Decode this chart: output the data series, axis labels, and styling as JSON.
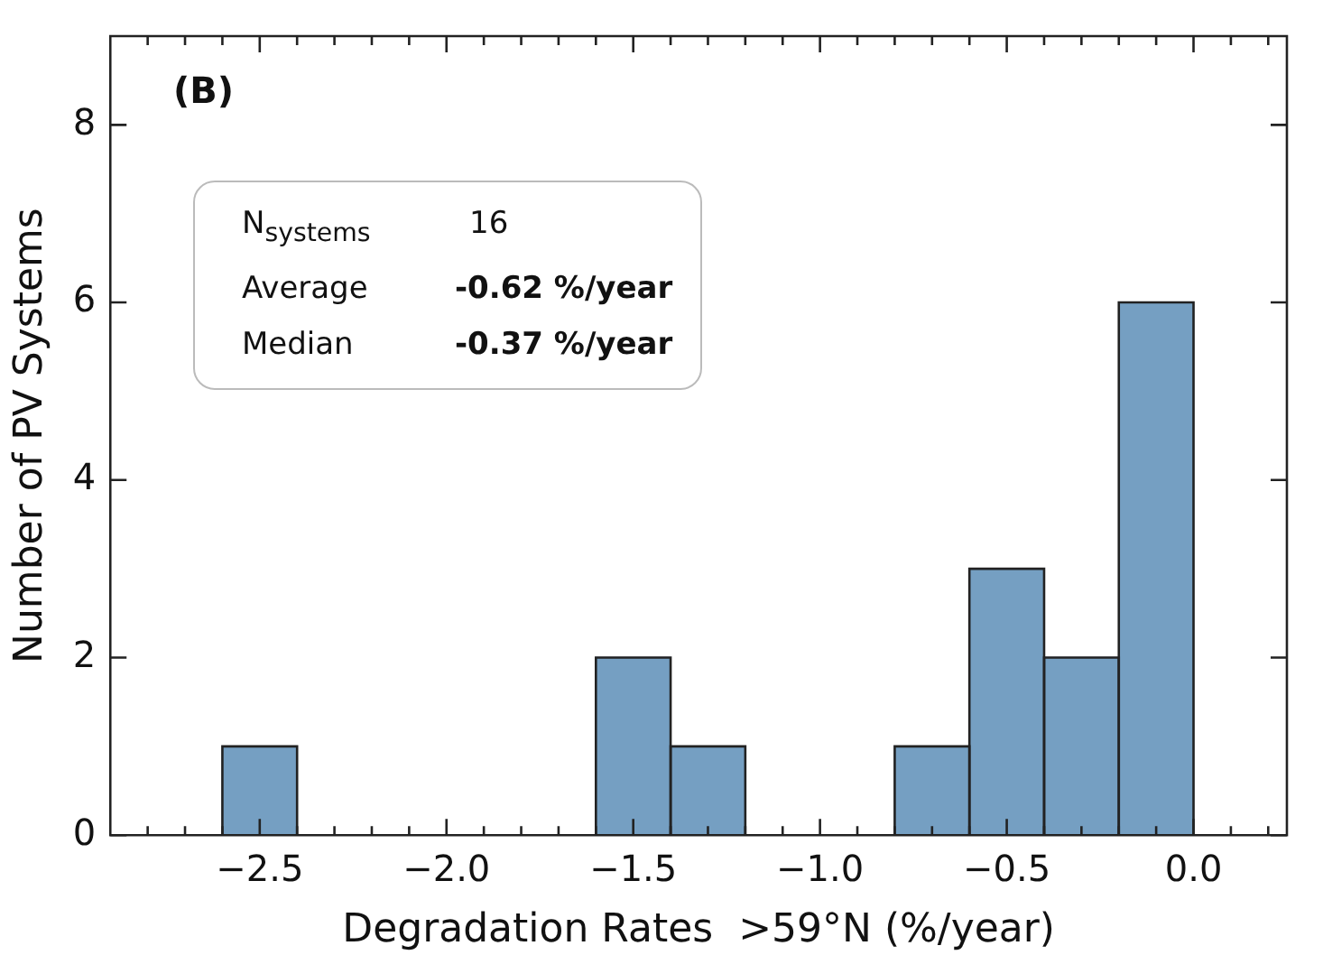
{
  "chart_data": {
    "type": "histogram",
    "xlabel": "Degradation Rates  >59°N (%/year)",
    "ylabel": "Number of PV Systems",
    "bins": [
      -2.6,
      -2.4,
      -2.2,
      -2.0,
      -1.8,
      -1.6,
      -1.4,
      -1.2,
      -1.0,
      -0.8,
      -0.6,
      -0.4,
      -0.2,
      0.0
    ],
    "values": [
      1,
      0,
      0,
      0,
      0,
      2,
      1,
      0,
      0,
      1,
      3,
      2,
      6
    ],
    "color": "#759fc2",
    "xlim": [
      -2.9,
      0.25
    ],
    "ylim": [
      0,
      9
    ],
    "xticks": [
      {
        "value": -2.8,
        "label": null
      },
      {
        "value": -2.7,
        "label": null
      },
      {
        "value": -2.6,
        "label": null
      },
      {
        "value": -2.5,
        "label": "−2.5"
      },
      {
        "value": -2.4,
        "label": null
      },
      {
        "value": -2.3,
        "label": null
      },
      {
        "value": -2.2,
        "label": null
      },
      {
        "value": -2.1,
        "label": null
      },
      {
        "value": -2.0,
        "label": "−2.0"
      },
      {
        "value": -1.9,
        "label": null
      },
      {
        "value": -1.8,
        "label": null
      },
      {
        "value": -1.7,
        "label": null
      },
      {
        "value": -1.6,
        "label": null
      },
      {
        "value": -1.5,
        "label": "−1.5"
      },
      {
        "value": -1.4,
        "label": null
      },
      {
        "value": -1.3,
        "label": null
      },
      {
        "value": -1.2,
        "label": null
      },
      {
        "value": -1.1,
        "label": null
      },
      {
        "value": -1.0,
        "label": "−1.0"
      },
      {
        "value": -0.9,
        "label": null
      },
      {
        "value": -0.8,
        "label": null
      },
      {
        "value": -0.7,
        "label": null
      },
      {
        "value": -0.6,
        "label": null
      },
      {
        "value": -0.5,
        "label": "−0.5"
      },
      {
        "value": -0.4,
        "label": null
      },
      {
        "value": -0.3,
        "label": null
      },
      {
        "value": -0.2,
        "label": null
      },
      {
        "value": -0.1,
        "label": null
      },
      {
        "value": 0.0,
        "label": "0.0"
      },
      {
        "value": 0.1,
        "label": null
      },
      {
        "value": 0.2,
        "label": null
      }
    ],
    "yticks": [
      0,
      2,
      4,
      6,
      8
    ],
    "grid": false,
    "legend": false,
    "annotations": [
      "(B)",
      "N$_{systems}$",
      "16",
      "Average",
      "-0.62 %/year",
      "Median",
      "-0.37 %/year"
    ]
  }
}
